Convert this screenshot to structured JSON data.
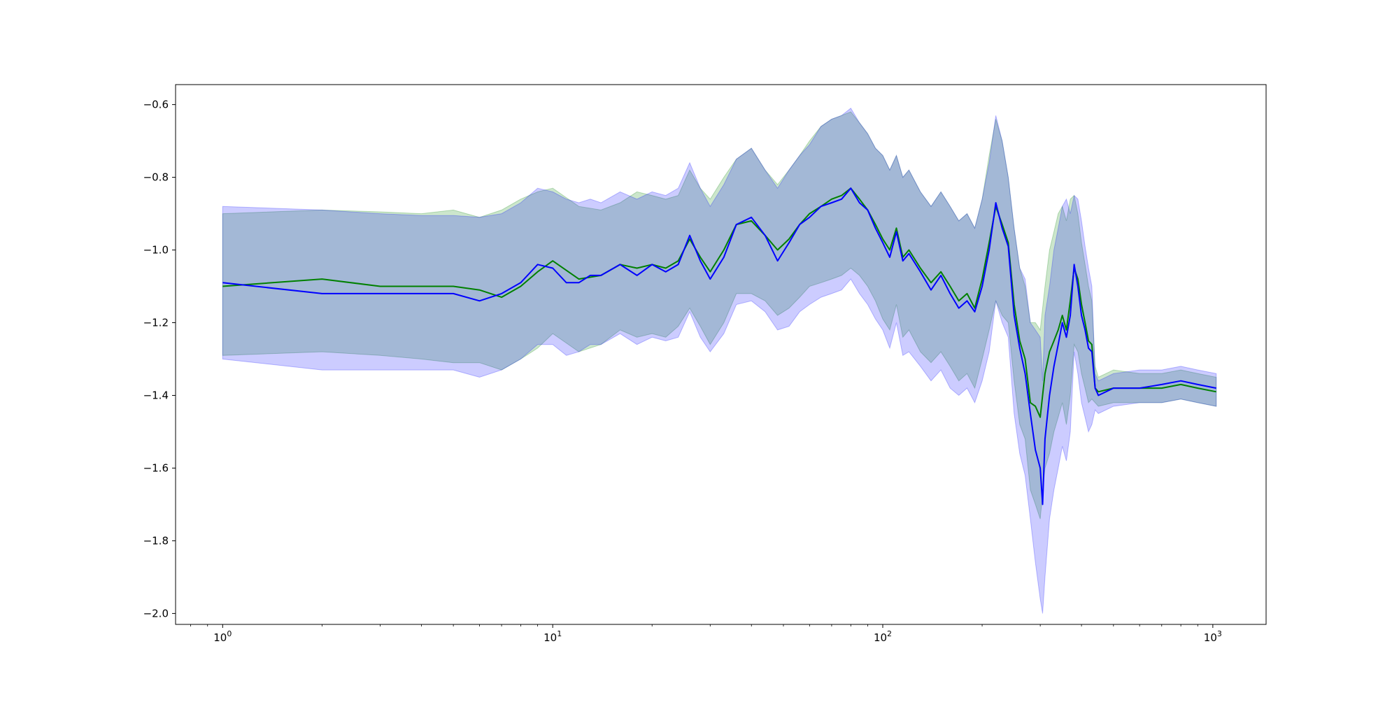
{
  "chart_data": {
    "type": "line",
    "title": "",
    "xlabel": "",
    "ylabel": "",
    "xscale": "log",
    "xlim": [
      0.72,
      1450
    ],
    "ylim": [
      -2.03,
      -0.545
    ],
    "grid": false,
    "legend": "none",
    "x_ticks": [
      {
        "value": 1,
        "base": "10",
        "exp": "0"
      },
      {
        "value": 10,
        "base": "10",
        "exp": "1"
      },
      {
        "value": 100,
        "base": "10",
        "exp": "2"
      },
      {
        "value": 1000,
        "base": "10",
        "exp": "3"
      }
    ],
    "y_ticks": [
      {
        "value": -0.6,
        "label": "−0.6"
      },
      {
        "value": -0.8,
        "label": "−0.8"
      },
      {
        "value": -1.0,
        "label": "−1.0"
      },
      {
        "value": -1.2,
        "label": "−1.2"
      },
      {
        "value": -1.4,
        "label": "−1.4"
      },
      {
        "value": -1.6,
        "label": "−1.6"
      },
      {
        "value": -1.8,
        "label": "−1.8"
      },
      {
        "value": -2.0,
        "label": "−2.0"
      }
    ],
    "series": [
      {
        "color": "#008000",
        "band_color": "#008000",
        "x": [
          1,
          2,
          3,
          4,
          5,
          6,
          7,
          8,
          9,
          10,
          12,
          14,
          16,
          18,
          20,
          22,
          24,
          26,
          28,
          30,
          33,
          36,
          40,
          44,
          48,
          52,
          56,
          60,
          65,
          70,
          75,
          80,
          85,
          90,
          95,
          100,
          105,
          110,
          115,
          120,
          130,
          140,
          150,
          160,
          170,
          180,
          190,
          200,
          210,
          220,
          230,
          240,
          250,
          260,
          270,
          280,
          290,
          300,
          310,
          320,
          330,
          340,
          350,
          360,
          370,
          380,
          390,
          400,
          410,
          420,
          430,
          440,
          450,
          500,
          600,
          700,
          800,
          900,
          1024
        ],
        "y": [
          -1.1,
          -1.08,
          -1.1,
          -1.1,
          -1.1,
          -1.11,
          -1.13,
          -1.1,
          -1.06,
          -1.03,
          -1.08,
          -1.07,
          -1.04,
          -1.05,
          -1.04,
          -1.05,
          -1.03,
          -0.97,
          -1.02,
          -1.06,
          -1.0,
          -0.93,
          -0.92,
          -0.96,
          -1.0,
          -0.97,
          -0.93,
          -0.9,
          -0.88,
          -0.86,
          -0.85,
          -0.83,
          -0.86,
          -0.89,
          -0.93,
          -0.97,
          -1.0,
          -0.94,
          -1.02,
          -1.0,
          -1.05,
          -1.09,
          -1.06,
          -1.1,
          -1.14,
          -1.12,
          -1.16,
          -1.08,
          -0.98,
          -0.88,
          -0.93,
          -0.98,
          -1.15,
          -1.25,
          -1.3,
          -1.42,
          -1.43,
          -1.46,
          -1.34,
          -1.28,
          -1.25,
          -1.22,
          -1.18,
          -1.22,
          -1.14,
          -1.05,
          -1.08,
          -1.15,
          -1.2,
          -1.25,
          -1.26,
          -1.38,
          -1.39,
          -1.38,
          -1.38,
          -1.38,
          -1.37,
          -1.38,
          -1.39
        ],
        "upper": [
          -0.9,
          -0.89,
          -0.895,
          -0.9,
          -0.89,
          -0.91,
          -0.89,
          -0.86,
          -0.84,
          -0.83,
          -0.88,
          -0.89,
          -0.87,
          -0.84,
          -0.85,
          -0.86,
          -0.85,
          -0.78,
          -0.83,
          -0.86,
          -0.8,
          -0.75,
          -0.72,
          -0.78,
          -0.82,
          -0.78,
          -0.74,
          -0.7,
          -0.66,
          -0.64,
          -0.63,
          -0.62,
          -0.65,
          -0.68,
          -0.72,
          -0.74,
          -0.78,
          -0.74,
          -0.8,
          -0.78,
          -0.84,
          -0.88,
          -0.84,
          -0.88,
          -0.92,
          -0.9,
          -0.94,
          -0.86,
          -0.74,
          -0.64,
          -0.7,
          -0.8,
          -0.94,
          -1.05,
          -1.1,
          -1.2,
          -1.2,
          -1.22,
          -1.1,
          -1.0,
          -0.95,
          -0.9,
          -0.88,
          -0.92,
          -0.86,
          -0.85,
          -0.9,
          -0.98,
          -1.04,
          -1.1,
          -1.14,
          -1.32,
          -1.35,
          -1.33,
          -1.34,
          -1.34,
          -1.33,
          -1.34,
          -1.35
        ],
        "lower": [
          -1.29,
          -1.28,
          -1.29,
          -1.3,
          -1.31,
          -1.31,
          -1.33,
          -1.3,
          -1.27,
          -1.23,
          -1.28,
          -1.26,
          -1.22,
          -1.24,
          -1.23,
          -1.24,
          -1.21,
          -1.16,
          -1.21,
          -1.26,
          -1.2,
          -1.12,
          -1.12,
          -1.14,
          -1.18,
          -1.16,
          -1.13,
          -1.1,
          -1.09,
          -1.08,
          -1.07,
          -1.05,
          -1.07,
          -1.1,
          -1.14,
          -1.19,
          -1.22,
          -1.15,
          -1.24,
          -1.22,
          -1.28,
          -1.31,
          -1.28,
          -1.32,
          -1.36,
          -1.34,
          -1.38,
          -1.3,
          -1.22,
          -1.14,
          -1.18,
          -1.2,
          -1.36,
          -1.48,
          -1.52,
          -1.66,
          -1.7,
          -1.74,
          -1.6,
          -1.56,
          -1.5,
          -1.46,
          -1.42,
          -1.48,
          -1.4,
          -1.26,
          -1.28,
          -1.34,
          -1.38,
          -1.42,
          -1.41,
          -1.42,
          -1.43,
          -1.42,
          -1.42,
          -1.42,
          -1.41,
          -1.42,
          -1.43
        ]
      },
      {
        "color": "#0000ff",
        "band_color": "#0000ff",
        "x": [
          1,
          2,
          3,
          4,
          5,
          6,
          7,
          8,
          9,
          10,
          11,
          12,
          13,
          14,
          16,
          18,
          20,
          22,
          24,
          26,
          28,
          30,
          33,
          36,
          40,
          44,
          48,
          52,
          56,
          60,
          65,
          70,
          75,
          80,
          85,
          90,
          95,
          100,
          105,
          110,
          115,
          120,
          130,
          140,
          150,
          160,
          170,
          180,
          190,
          200,
          210,
          220,
          230,
          240,
          250,
          260,
          270,
          280,
          290,
          300,
          305,
          310,
          320,
          330,
          340,
          350,
          360,
          370,
          380,
          390,
          400,
          410,
          420,
          430,
          440,
          450,
          500,
          600,
          700,
          800,
          900,
          1024
        ],
        "y": [
          -1.09,
          -1.12,
          -1.12,
          -1.12,
          -1.12,
          -1.14,
          -1.12,
          -1.09,
          -1.04,
          -1.05,
          -1.09,
          -1.09,
          -1.07,
          -1.07,
          -1.04,
          -1.07,
          -1.04,
          -1.06,
          -1.04,
          -0.96,
          -1.03,
          -1.08,
          -1.02,
          -0.93,
          -0.91,
          -0.96,
          -1.03,
          -0.98,
          -0.93,
          -0.91,
          -0.88,
          -0.87,
          -0.86,
          -0.83,
          -0.87,
          -0.89,
          -0.94,
          -0.98,
          -1.02,
          -0.95,
          -1.03,
          -1.01,
          -1.06,
          -1.11,
          -1.07,
          -1.12,
          -1.16,
          -1.14,
          -1.17,
          -1.1,
          -1.0,
          -0.87,
          -0.94,
          -0.99,
          -1.18,
          -1.27,
          -1.34,
          -1.45,
          -1.55,
          -1.6,
          -1.7,
          -1.52,
          -1.4,
          -1.32,
          -1.26,
          -1.2,
          -1.24,
          -1.18,
          -1.04,
          -1.1,
          -1.18,
          -1.22,
          -1.27,
          -1.28,
          -1.38,
          -1.4,
          -1.38,
          -1.38,
          -1.37,
          -1.36,
          -1.37,
          -1.38
        ],
        "upper": [
          -0.88,
          -0.89,
          -0.9,
          -0.905,
          -0.905,
          -0.91,
          -0.9,
          -0.87,
          -0.83,
          -0.84,
          -0.86,
          -0.87,
          -0.86,
          -0.87,
          -0.84,
          -0.86,
          -0.84,
          -0.85,
          -0.83,
          -0.76,
          -0.83,
          -0.88,
          -0.82,
          -0.75,
          -0.72,
          -0.78,
          -0.83,
          -0.78,
          -0.74,
          -0.71,
          -0.66,
          -0.64,
          -0.63,
          -0.61,
          -0.65,
          -0.68,
          -0.72,
          -0.74,
          -0.78,
          -0.74,
          -0.8,
          -0.78,
          -0.84,
          -0.88,
          -0.84,
          -0.88,
          -0.92,
          -0.9,
          -0.94,
          -0.86,
          -0.76,
          -0.63,
          -0.7,
          -0.8,
          -0.94,
          -1.05,
          -1.08,
          -1.2,
          -1.22,
          -1.24,
          -1.36,
          -1.18,
          -1.1,
          -1.0,
          -0.94,
          -0.88,
          -0.86,
          -0.9,
          -0.85,
          -0.86,
          -0.92,
          -0.99,
          -1.05,
          -1.1,
          -1.34,
          -1.36,
          -1.34,
          -1.33,
          -1.33,
          -1.32,
          -1.33,
          -1.34
        ],
        "lower": [
          -1.3,
          -1.33,
          -1.33,
          -1.33,
          -1.33,
          -1.35,
          -1.33,
          -1.3,
          -1.26,
          -1.26,
          -1.29,
          -1.28,
          -1.26,
          -1.26,
          -1.23,
          -1.26,
          -1.24,
          -1.25,
          -1.24,
          -1.17,
          -1.24,
          -1.28,
          -1.23,
          -1.15,
          -1.14,
          -1.17,
          -1.22,
          -1.21,
          -1.17,
          -1.15,
          -1.13,
          -1.12,
          -1.11,
          -1.08,
          -1.12,
          -1.15,
          -1.19,
          -1.22,
          -1.27,
          -1.2,
          -1.29,
          -1.28,
          -1.32,
          -1.36,
          -1.33,
          -1.38,
          -1.4,
          -1.38,
          -1.42,
          -1.36,
          -1.28,
          -1.14,
          -1.2,
          -1.24,
          -1.45,
          -1.56,
          -1.62,
          -1.74,
          -1.86,
          -1.96,
          -2.0,
          -1.9,
          -1.74,
          -1.66,
          -1.6,
          -1.54,
          -1.58,
          -1.5,
          -1.28,
          -1.34,
          -1.42,
          -1.46,
          -1.5,
          -1.48,
          -1.44,
          -1.45,
          -1.43,
          -1.42,
          -1.42,
          -1.41,
          -1.42,
          -1.43
        ]
      }
    ]
  }
}
